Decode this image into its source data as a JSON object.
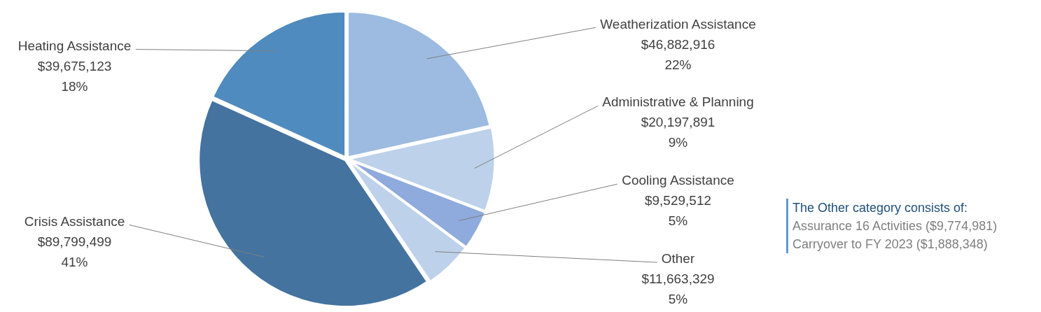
{
  "chart_data": {
    "type": "pie",
    "categories": [
      "Weatherization Assistance",
      "Administrative & Planning",
      "Cooling Assistance",
      "Other",
      "Crisis Assistance",
      "Heating Assistance"
    ],
    "values": [
      46882916,
      20197891,
      9529512,
      11663329,
      89799499,
      39675123
    ],
    "value_labels": [
      "$46,882,916\n22%",
      "$20,197,891\n9%",
      "$9,529,512\n5%",
      "$11,663,329\n5%",
      "$89,799,499\n41%",
      "$39,675,123\n18%"
    ],
    "colors": [
      "#9dbbe0",
      "#bdd1ea",
      "#8faadc",
      "#bdd1ea",
      "#44739f",
      "#4f8bbf"
    ],
    "legend": false,
    "annotations": [
      "The Other category consists of:",
      "Assurance 16 Activities ($9,774,981)",
      "Carryover to FY 2023 ($1,888,348)"
    ]
  }
}
